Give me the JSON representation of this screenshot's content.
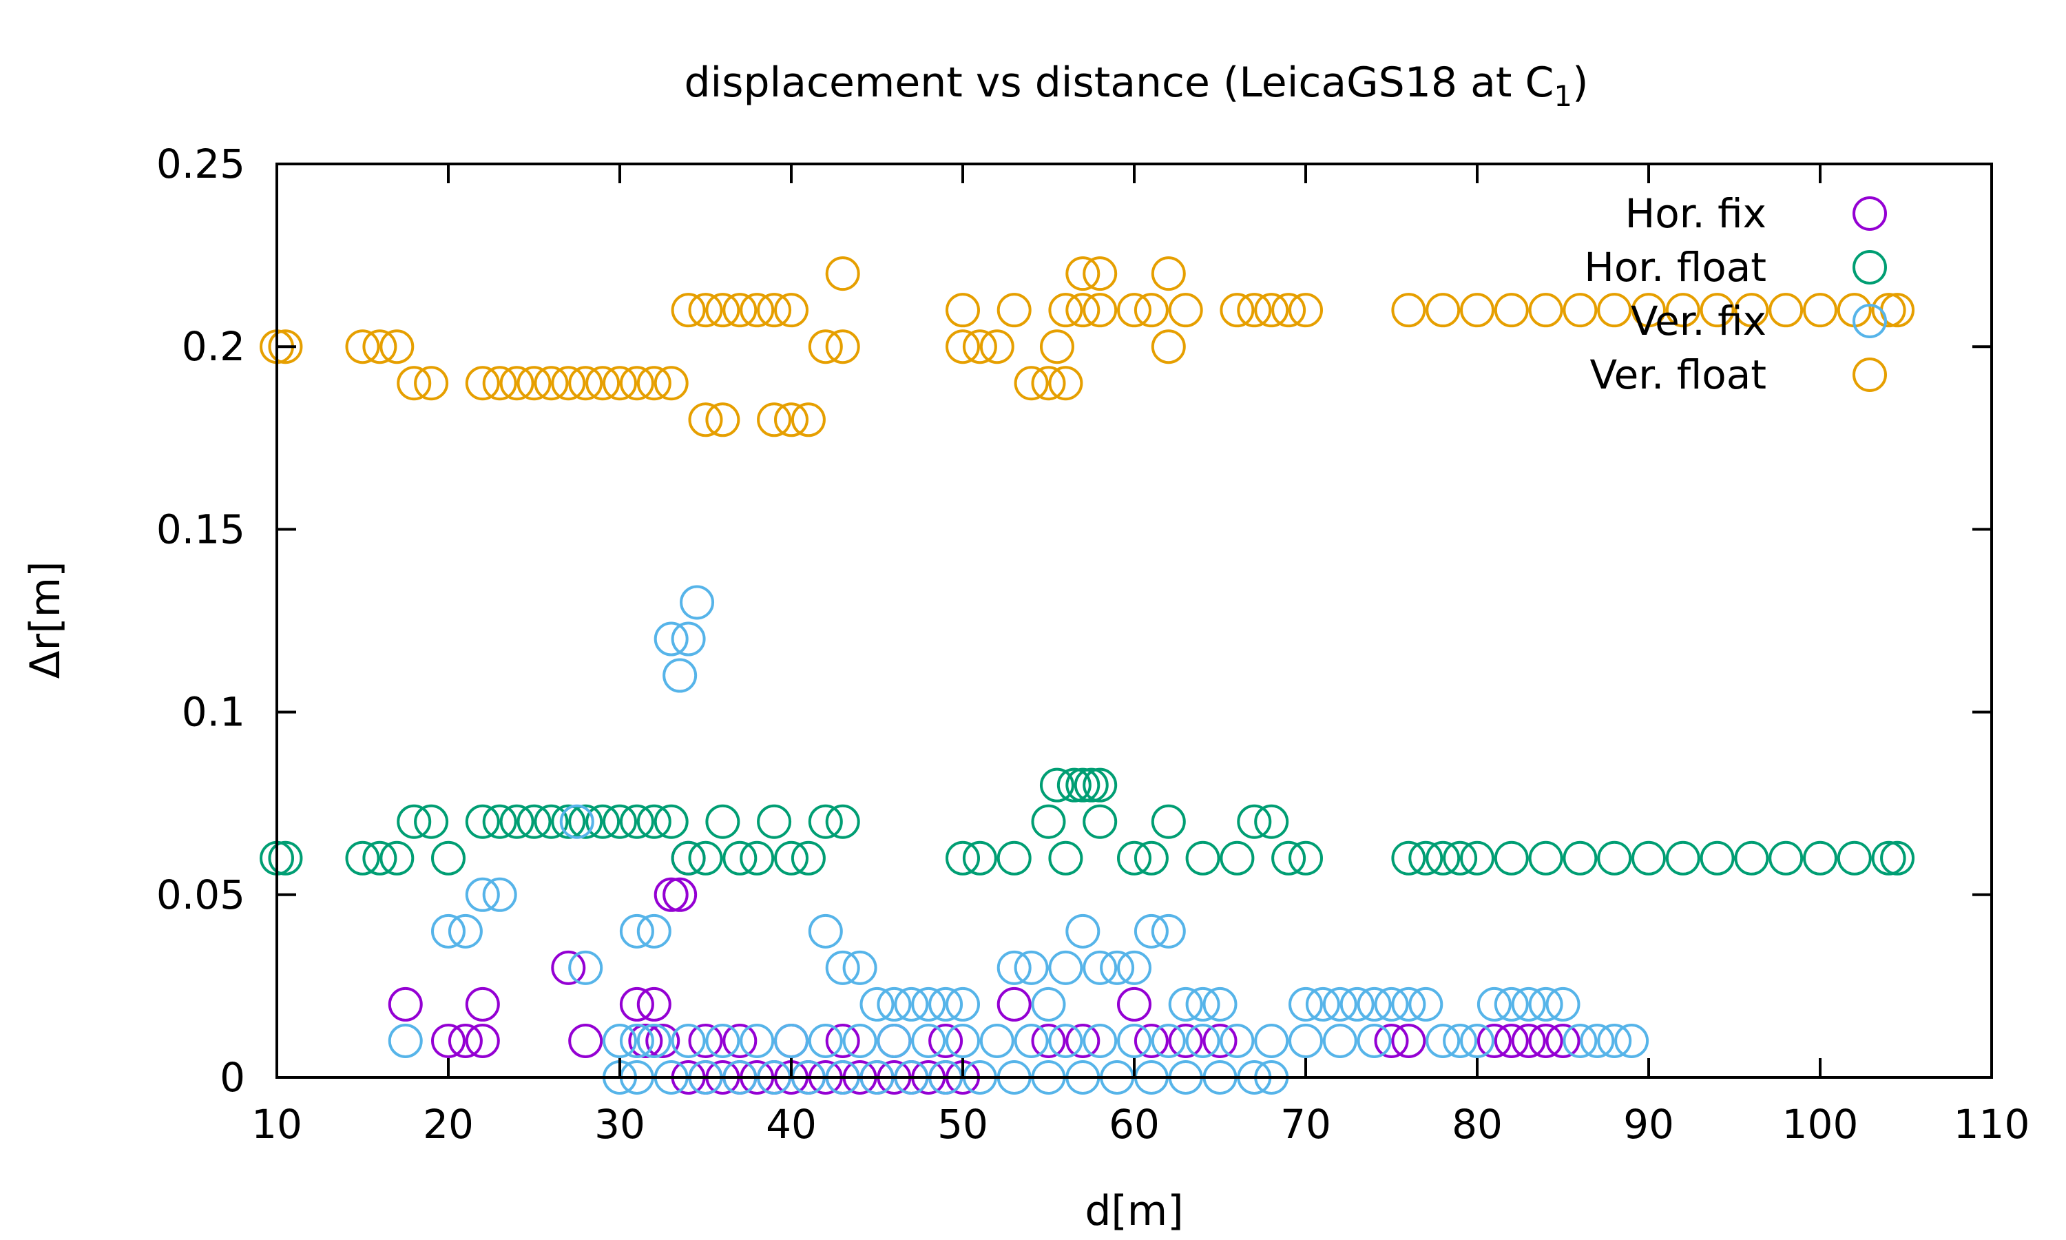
{
  "chart_data": {
    "type": "scatter",
    "title": "displacement vs distance (LeicaGS18 at C",
    "title_subscript": "1",
    "title_suffix": ")",
    "xlabel": "d[m]",
    "ylabel": "Δr[m]",
    "xlim": [
      10,
      110
    ],
    "ylim": [
      0,
      0.25
    ],
    "x_ticks": [
      "10",
      "20",
      "30",
      "40",
      "50",
      "60",
      "70",
      "80",
      "90",
      "100",
      "110"
    ],
    "y_ticks": [
      "0",
      "0.05",
      "0.1",
      "0.15",
      "0.2",
      "0.25"
    ],
    "grid": false,
    "legend_position": "top-right",
    "marker": "open-circle",
    "series": [
      {
        "name": "Hor. fix",
        "color": "#9400d3",
        "points": [
          [
            17.5,
            0.02
          ],
          [
            20,
            0.01
          ],
          [
            21,
            0.01
          ],
          [
            22,
            0.02
          ],
          [
            22,
            0.01
          ],
          [
            27,
            0.03
          ],
          [
            28,
            0.01
          ],
          [
            31,
            0.02
          ],
          [
            32,
            0.02
          ],
          [
            31.5,
            0.01
          ],
          [
            32.5,
            0.01
          ],
          [
            33,
            0.05
          ],
          [
            33.5,
            0.05
          ],
          [
            34,
            0.06
          ],
          [
            34,
            0
          ],
          [
            35,
            0
          ],
          [
            36,
            0
          ],
          [
            37,
            0
          ],
          [
            38,
            0
          ],
          [
            39,
            0
          ],
          [
            40,
            0
          ],
          [
            41,
            0
          ],
          [
            42,
            0
          ],
          [
            43,
            0
          ],
          [
            44,
            0
          ],
          [
            45,
            0
          ],
          [
            46,
            0
          ],
          [
            47,
            0
          ],
          [
            48,
            0
          ],
          [
            49,
            0
          ],
          [
            50,
            0
          ],
          [
            35,
            0.01
          ],
          [
            37,
            0.01
          ],
          [
            40,
            0.01
          ],
          [
            43,
            0.01
          ],
          [
            46,
            0.01
          ],
          [
            49,
            0.01
          ],
          [
            53,
            0.02
          ],
          [
            55,
            0.01
          ],
          [
            57,
            0.01
          ],
          [
            60,
            0.02
          ],
          [
            61,
            0.01
          ],
          [
            63,
            0.01
          ],
          [
            65,
            0.01
          ],
          [
            75,
            0.01
          ],
          [
            76,
            0.01
          ],
          [
            81,
            0.01
          ],
          [
            82,
            0.01
          ],
          [
            83,
            0.01
          ],
          [
            84,
            0.01
          ],
          [
            85,
            0.01
          ]
        ]
      },
      {
        "name": "Hor. float",
        "color": "#009e73",
        "points": [
          [
            10,
            0.06
          ],
          [
            10.5,
            0.06
          ],
          [
            15,
            0.06
          ],
          [
            16,
            0.06
          ],
          [
            17,
            0.06
          ],
          [
            18,
            0.07
          ],
          [
            19,
            0.07
          ],
          [
            20,
            0.06
          ],
          [
            22,
            0.07
          ],
          [
            23,
            0.07
          ],
          [
            24,
            0.07
          ],
          [
            25,
            0.07
          ],
          [
            26,
            0.07
          ],
          [
            27,
            0.07
          ],
          [
            28,
            0.07
          ],
          [
            29,
            0.07
          ],
          [
            30,
            0.07
          ],
          [
            31,
            0.07
          ],
          [
            32,
            0.07
          ],
          [
            33,
            0.07
          ],
          [
            34,
            0.06
          ],
          [
            35,
            0.06
          ],
          [
            36,
            0.07
          ],
          [
            37,
            0.06
          ],
          [
            38,
            0.06
          ],
          [
            39,
            0.07
          ],
          [
            40,
            0.06
          ],
          [
            41,
            0.06
          ],
          [
            42,
            0.07
          ],
          [
            43,
            0.07
          ],
          [
            50,
            0.06
          ],
          [
            51,
            0.06
          ],
          [
            53,
            0.06
          ],
          [
            55,
            0.07
          ],
          [
            56,
            0.06
          ],
          [
            55.5,
            0.08
          ],
          [
            56.5,
            0.08
          ],
          [
            57,
            0.08
          ],
          [
            57.5,
            0.08
          ],
          [
            58,
            0.08
          ],
          [
            58,
            0.07
          ],
          [
            60,
            0.06
          ],
          [
            61,
            0.06
          ],
          [
            62,
            0.07
          ],
          [
            64,
            0.06
          ],
          [
            66,
            0.06
          ],
          [
            67,
            0.07
          ],
          [
            68,
            0.07
          ],
          [
            69,
            0.06
          ],
          [
            70,
            0.06
          ],
          [
            76,
            0.06
          ],
          [
            77,
            0.06
          ],
          [
            78,
            0.06
          ],
          [
            79,
            0.06
          ],
          [
            80,
            0.06
          ],
          [
            82,
            0.06
          ],
          [
            84,
            0.06
          ],
          [
            86,
            0.06
          ],
          [
            88,
            0.06
          ],
          [
            90,
            0.06
          ],
          [
            92,
            0.06
          ],
          [
            94,
            0.06
          ],
          [
            96,
            0.06
          ],
          [
            98,
            0.06
          ],
          [
            100,
            0.06
          ],
          [
            102,
            0.06
          ],
          [
            104,
            0.06
          ],
          [
            104.5,
            0.06
          ]
        ]
      },
      {
        "name": "Ver. fix",
        "color": "#56b4e9",
        "points": [
          [
            17.5,
            0.01
          ],
          [
            20,
            0.04
          ],
          [
            21,
            0.04
          ],
          [
            22,
            0.05
          ],
          [
            23,
            0.05
          ],
          [
            27.5,
            0.07
          ],
          [
            28,
            0.03
          ],
          [
            31,
            0.04
          ],
          [
            32,
            0.04
          ],
          [
            33,
            0.12
          ],
          [
            33.5,
            0.11
          ],
          [
            34,
            0.12
          ],
          [
            34.5,
            0.13
          ],
          [
            30,
            0.01
          ],
          [
            31,
            0.01
          ],
          [
            32,
            0.01
          ],
          [
            34,
            0.01
          ],
          [
            36,
            0.01
          ],
          [
            38,
            0.01
          ],
          [
            40,
            0.01
          ],
          [
            42,
            0.01
          ],
          [
            44,
            0.01
          ],
          [
            46,
            0.01
          ],
          [
            48,
            0.01
          ],
          [
            50,
            0.01
          ],
          [
            52,
            0.01
          ],
          [
            54,
            0.01
          ],
          [
            56,
            0.01
          ],
          [
            58,
            0.01
          ],
          [
            60,
            0.01
          ],
          [
            62,
            0.01
          ],
          [
            64,
            0.01
          ],
          [
            66,
            0.01
          ],
          [
            68,
            0.01
          ],
          [
            70,
            0.01
          ],
          [
            72,
            0.01
          ],
          [
            74,
            0.01
          ],
          [
            30,
            0
          ],
          [
            31,
            0
          ],
          [
            33,
            0
          ],
          [
            35,
            0
          ],
          [
            37,
            0
          ],
          [
            39,
            0
          ],
          [
            41,
            0
          ],
          [
            43,
            0
          ],
          [
            45,
            0
          ],
          [
            47,
            0
          ],
          [
            49,
            0
          ],
          [
            51,
            0
          ],
          [
            53,
            0
          ],
          [
            55,
            0
          ],
          [
            57,
            0
          ],
          [
            59,
            0
          ],
          [
            61,
            0
          ],
          [
            63,
            0
          ],
          [
            65,
            0
          ],
          [
            67,
            0
          ],
          [
            68,
            0
          ],
          [
            42,
            0.04
          ],
          [
            43,
            0.03
          ],
          [
            44,
            0.03
          ],
          [
            45,
            0.02
          ],
          [
            46,
            0.02
          ],
          [
            47,
            0.02
          ],
          [
            48,
            0.02
          ],
          [
            49,
            0.02
          ],
          [
            50,
            0.02
          ],
          [
            53,
            0.03
          ],
          [
            54,
            0.03
          ],
          [
            55,
            0.02
          ],
          [
            56,
            0.03
          ],
          [
            57,
            0.04
          ],
          [
            58,
            0.03
          ],
          [
            59,
            0.03
          ],
          [
            60,
            0.03
          ],
          [
            61,
            0.04
          ],
          [
            62,
            0.04
          ],
          [
            63,
            0.02
          ],
          [
            64,
            0.02
          ],
          [
            65,
            0.02
          ],
          [
            70,
            0.02
          ],
          [
            71,
            0.02
          ],
          [
            72,
            0.02
          ],
          [
            73,
            0.02
          ],
          [
            74,
            0.02
          ],
          [
            75,
            0.02
          ],
          [
            76,
            0.02
          ],
          [
            77,
            0.02
          ],
          [
            78,
            0.01
          ],
          [
            79,
            0.01
          ],
          [
            80,
            0.01
          ],
          [
            81,
            0.02
          ],
          [
            82,
            0.02
          ],
          [
            83,
            0.02
          ],
          [
            84,
            0.02
          ],
          [
            85,
            0.02
          ],
          [
            86,
            0.01
          ],
          [
            87,
            0.01
          ],
          [
            88,
            0.01
          ],
          [
            89,
            0.01
          ]
        ]
      },
      {
        "name": "Ver. float",
        "color": "#e69f00",
        "points": [
          [
            10,
            0.2
          ],
          [
            10.5,
            0.2
          ],
          [
            15,
            0.2
          ],
          [
            16,
            0.2
          ],
          [
            17,
            0.2
          ],
          [
            18,
            0.19
          ],
          [
            19,
            0.19
          ],
          [
            22,
            0.19
          ],
          [
            23,
            0.19
          ],
          [
            24,
            0.19
          ],
          [
            25,
            0.19
          ],
          [
            26,
            0.19
          ],
          [
            27,
            0.19
          ],
          [
            28,
            0.19
          ],
          [
            29,
            0.19
          ],
          [
            30,
            0.19
          ],
          [
            31,
            0.19
          ],
          [
            32,
            0.19
          ],
          [
            33,
            0.19
          ],
          [
            34,
            0.21
          ],
          [
            35,
            0.21
          ],
          [
            36,
            0.21
          ],
          [
            37,
            0.21
          ],
          [
            38,
            0.21
          ],
          [
            39,
            0.21
          ],
          [
            40,
            0.21
          ],
          [
            35,
            0.18
          ],
          [
            36,
            0.18
          ],
          [
            39,
            0.18
          ],
          [
            40,
            0.18
          ],
          [
            41,
            0.18
          ],
          [
            42,
            0.2
          ],
          [
            43,
            0.2
          ],
          [
            43,
            0.22
          ],
          [
            50,
            0.21
          ],
          [
            50,
            0.2
          ],
          [
            51,
            0.2
          ],
          [
            52,
            0.2
          ],
          [
            53,
            0.21
          ],
          [
            54,
            0.19
          ],
          [
            55,
            0.19
          ],
          [
            56,
            0.19
          ],
          [
            55.5,
            0.2
          ],
          [
            56,
            0.21
          ],
          [
            57,
            0.21
          ],
          [
            57,
            0.22
          ],
          [
            58,
            0.22
          ],
          [
            58,
            0.21
          ],
          [
            60,
            0.21
          ],
          [
            61,
            0.21
          ],
          [
            62,
            0.22
          ],
          [
            62,
            0.2
          ],
          [
            63,
            0.21
          ],
          [
            66,
            0.21
          ],
          [
            67,
            0.21
          ],
          [
            68,
            0.21
          ],
          [
            69,
            0.21
          ],
          [
            70,
            0.21
          ],
          [
            76,
            0.21
          ],
          [
            78,
            0.21
          ],
          [
            80,
            0.21
          ],
          [
            82,
            0.21
          ],
          [
            84,
            0.21
          ],
          [
            86,
            0.21
          ],
          [
            88,
            0.21
          ],
          [
            90,
            0.21
          ],
          [
            92,
            0.21
          ],
          [
            94,
            0.21
          ],
          [
            96,
            0.21
          ],
          [
            98,
            0.21
          ],
          [
            100,
            0.21
          ],
          [
            102,
            0.21
          ],
          [
            104,
            0.21
          ],
          [
            104.5,
            0.21
          ]
        ]
      }
    ]
  }
}
